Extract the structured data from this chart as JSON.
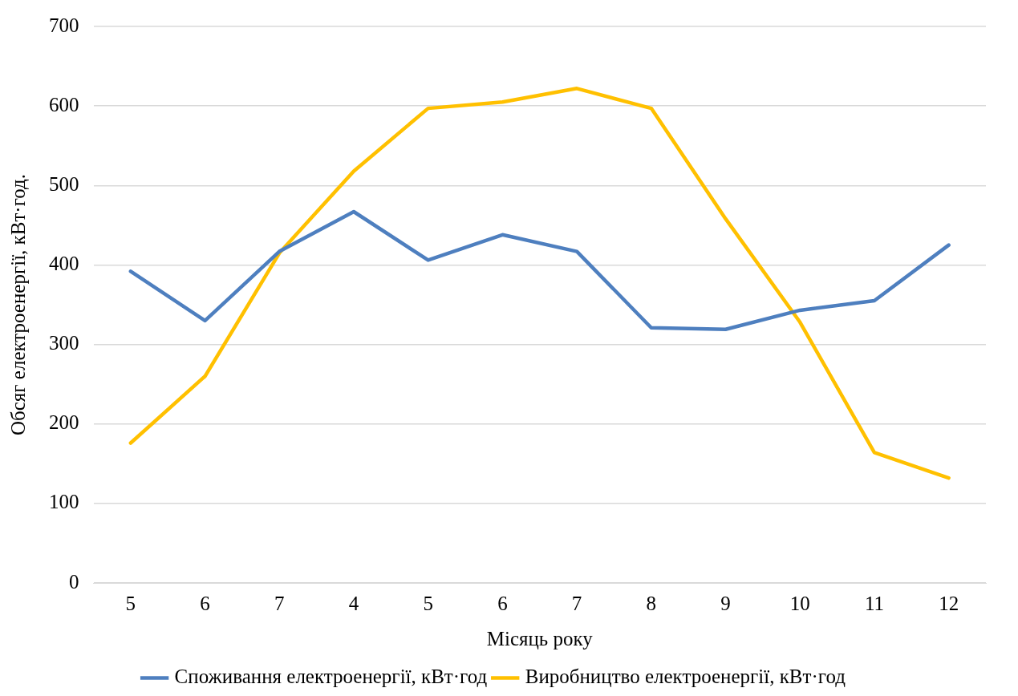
{
  "chart_data": {
    "type": "line",
    "xlabel": "Місяць року",
    "ylabel": "Обсяг електроенергії, кВт·год.",
    "categories": [
      "5",
      "6",
      "7",
      "4",
      "5",
      "6",
      "7",
      "8",
      "9",
      "10",
      "11",
      "12"
    ],
    "series": [
      {
        "name": "Споживання електроенергії, кВт·год",
        "color": "#4e7fbf",
        "values": [
          392,
          330,
          417,
          467,
          406,
          438,
          417,
          321,
          319,
          343,
          355,
          425
        ]
      },
      {
        "name": "Виробництво електроенергії, кВт·год",
        "color": "#ffc000",
        "values": [
          176,
          260,
          415,
          518,
          597,
          605,
          622,
          597,
          458,
          328,
          164,
          132
        ]
      }
    ],
    "ylim": [
      0,
      700
    ],
    "yticks": [
      0,
      100,
      200,
      300,
      400,
      500,
      600,
      700
    ],
    "grid": "y",
    "legend": "bottom",
    "marker": "none",
    "line_style": "solid"
  }
}
